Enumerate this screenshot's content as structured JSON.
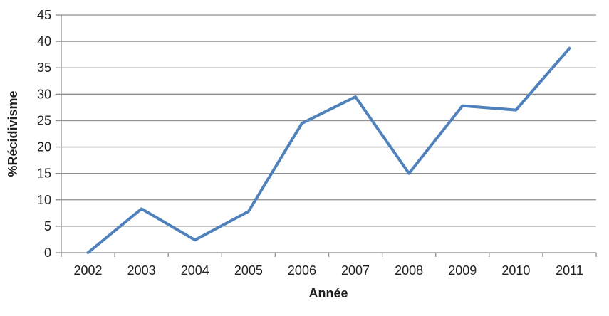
{
  "chart_data": {
    "type": "line",
    "categories": [
      "2002",
      "2003",
      "2004",
      "2005",
      "2006",
      "2007",
      "2008",
      "2009",
      "2010",
      "2011"
    ],
    "series": [
      {
        "name": "%Récidivisme",
        "values": [
          0,
          8.3,
          2.4,
          7.8,
          24.5,
          29.5,
          15,
          27.8,
          27,
          38.7
        ]
      }
    ],
    "title": "",
    "xlabel": "Année",
    "ylabel": "%Récidivisme",
    "ylim": [
      0,
      45
    ],
    "ytick_step": 5,
    "grid": "horizontal-major",
    "legend": "none",
    "colors": {
      "line": "#4F81BD",
      "grid": "#8E8E8E",
      "axis": "#8E8E8E",
      "text": "#1F1F1F",
      "background": "#FFFFFF"
    }
  }
}
